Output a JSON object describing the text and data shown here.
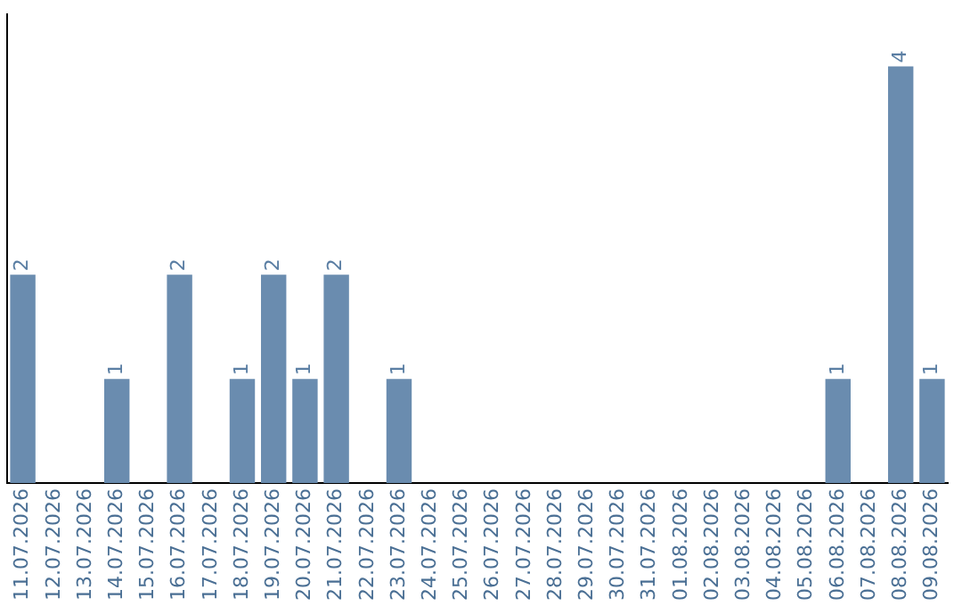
{
  "chart_data": {
    "type": "bar",
    "categories": [
      "11.07.2026",
      "12.07.2026",
      "13.07.2026",
      "14.07.2026",
      "15.07.2026",
      "16.07.2026",
      "17.07.2026",
      "18.07.2026",
      "19.07.2026",
      "20.07.2026",
      "21.07.2026",
      "22.07.2026",
      "23.07.2026",
      "24.07.2026",
      "25.07.2026",
      "26.07.2026",
      "27.07.2026",
      "28.07.2026",
      "29.07.2026",
      "30.07.2026",
      "31.07.2026",
      "01.08.2026",
      "02.08.2026",
      "03.08.2026",
      "04.08.2026",
      "05.08.2026",
      "06.08.2026",
      "07.08.2026",
      "08.08.2026",
      "09.08.2026"
    ],
    "values": [
      2,
      0,
      0,
      1,
      0,
      2,
      0,
      1,
      2,
      1,
      2,
      0,
      1,
      0,
      0,
      0,
      0,
      0,
      0,
      0,
      0,
      0,
      0,
      0,
      0,
      0,
      1,
      0,
      4,
      1
    ],
    "value_labels": [
      "2",
      null,
      null,
      "1",
      null,
      "2",
      null,
      "1",
      "2",
      "1",
      "2",
      null,
      "1",
      null,
      null,
      null,
      null,
      null,
      null,
      null,
      null,
      null,
      null,
      null,
      null,
      null,
      "1",
      null,
      "4",
      "1"
    ],
    "color": "#6a8caf",
    "grid": false,
    "legend": false,
    "tick_labels": "x"
  }
}
